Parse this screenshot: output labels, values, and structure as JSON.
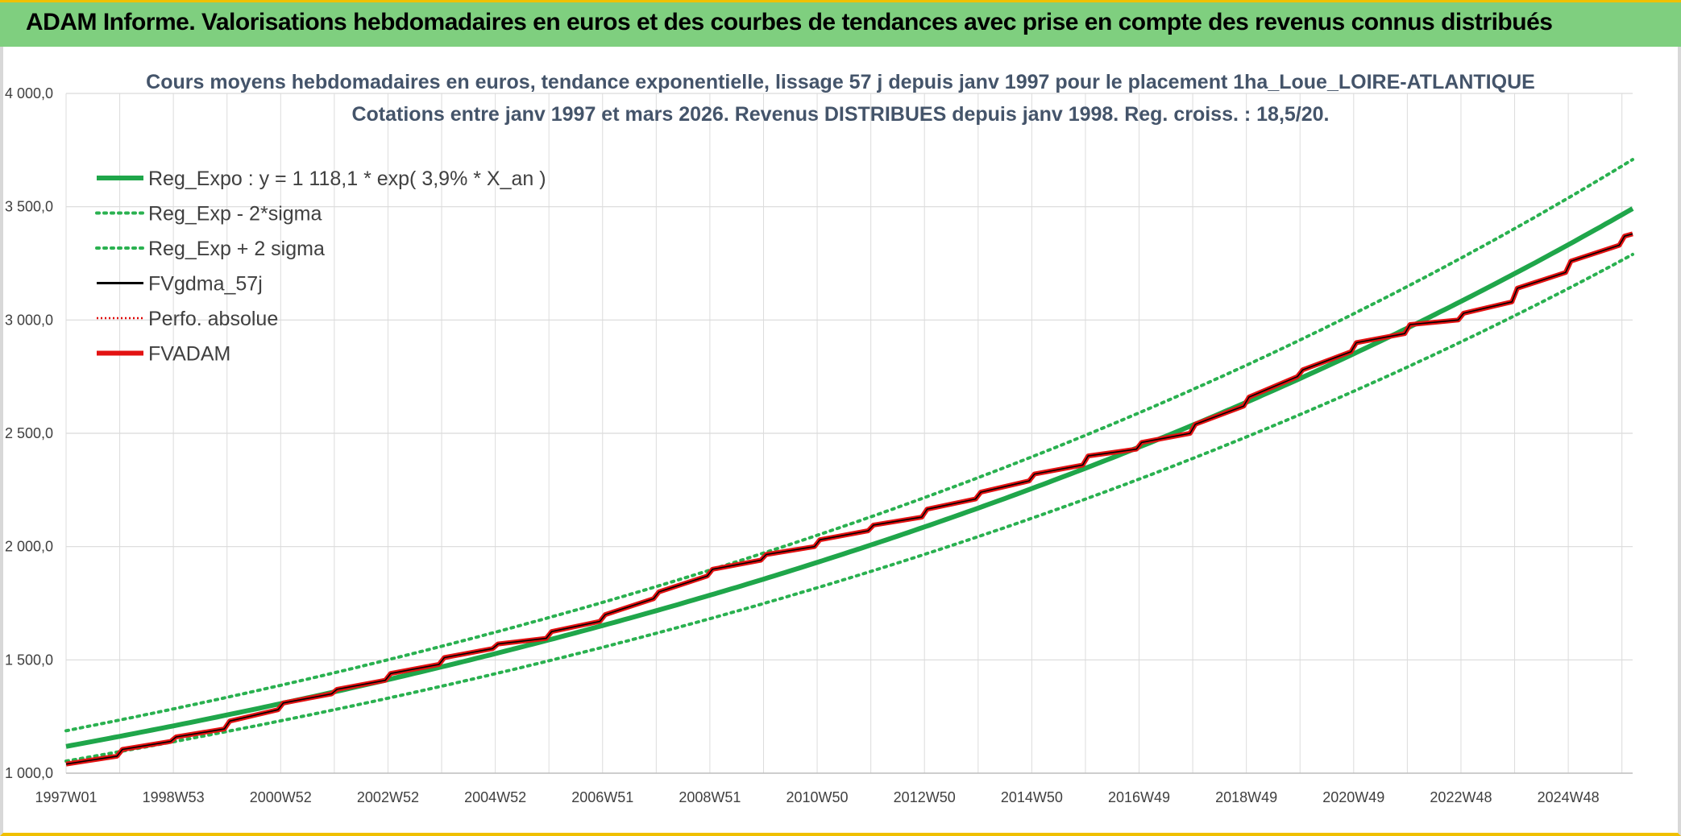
{
  "banner": {
    "title": "ADAM Informe. Valorisations hebdomadaires en euros et des courbes de tendances avec prise en compte des revenus connus distribués"
  },
  "colors": {
    "banner_bg": "#7fcf7f",
    "reg_expo": "#1fa64a",
    "reg_band": "#2ab150",
    "fvgdma": "#000000",
    "perfo": "#e00000",
    "fvadam": "#e31212",
    "title": "#44546a"
  },
  "chart_data": {
    "type": "line",
    "title": [
      "Cours moyens hebdomadaires en euros, tendance exponentielle, lissage 57 j depuis janv 1997 pour le placement 1ha_Loue_LOIRE-ATLANTIQUE",
      "Cotations entre janv 1997 et mars 2026. Revenus DISTRIBUES depuis janv 1998. Reg. croiss. : 18,5/20."
    ],
    "xlabel": "",
    "ylabel": "",
    "x_range_years": [
      1997.0,
      2026.2
    ],
    "ylim": [
      1000,
      4000
    ],
    "y_ticks": [
      "1 000,0",
      "1 500,0",
      "2 000,0",
      "2 500,0",
      "3 000,0",
      "3 500,0",
      "4 000,0"
    ],
    "x_ticks": [
      "1997W01",
      "1998W53",
      "2000W52",
      "2002W52",
      "2004W52",
      "2006W51",
      "2008W51",
      "2010W50",
      "2012W50",
      "2014W50",
      "2016W49",
      "2018W49",
      "2020W49",
      "2022W48",
      "2024W48"
    ],
    "grid": true,
    "legend_position": "top-left",
    "legend": [
      {
        "label": "Reg_Expo : y = 1 118,1  * exp( 3,9% *  X_an )",
        "style": "solid-thick",
        "color": "#1fa64a"
      },
      {
        "label": "Reg_Exp - 2*sigma",
        "style": "dotted",
        "color": "#2ab150"
      },
      {
        "label": "Reg_Exp + 2 sigma",
        "style": "dotted",
        "color": "#2ab150"
      },
      {
        "label": "FVgdma_57j",
        "style": "solid",
        "color": "#000000"
      },
      {
        "label": "Perfo. absolue",
        "style": "dotted-thin",
        "color": "#e00000"
      },
      {
        "label": "FVADAM",
        "style": "solid-thick",
        "color": "#e31212"
      }
    ],
    "regression": {
      "a": 1118.1,
      "growth_rate": 0.039
    },
    "band_factors": {
      "lower": 0.942,
      "upper": 1.062
    },
    "fvadam_points": [
      [
        1997.0,
        1040
      ],
      [
        1997.4,
        1055
      ],
      [
        1997.95,
        1075
      ],
      [
        1998.05,
        1105
      ],
      [
        1998.95,
        1140
      ],
      [
        1999.05,
        1160
      ],
      [
        1999.95,
        1195
      ],
      [
        2000.05,
        1230
      ],
      [
        2000.95,
        1280
      ],
      [
        2001.05,
        1310
      ],
      [
        2001.95,
        1350
      ],
      [
        2002.05,
        1370
      ],
      [
        2002.95,
        1410
      ],
      [
        2003.05,
        1440
      ],
      [
        2003.95,
        1480
      ],
      [
        2004.05,
        1510
      ],
      [
        2004.95,
        1550
      ],
      [
        2005.05,
        1570
      ],
      [
        2005.95,
        1595
      ],
      [
        2006.05,
        1625
      ],
      [
        2006.95,
        1670
      ],
      [
        2007.05,
        1700
      ],
      [
        2007.95,
        1770
      ],
      [
        2008.05,
        1800
      ],
      [
        2008.95,
        1870
      ],
      [
        2009.05,
        1900
      ],
      [
        2009.95,
        1940
      ],
      [
        2010.05,
        1965
      ],
      [
        2010.95,
        2000
      ],
      [
        2011.05,
        2030
      ],
      [
        2011.95,
        2070
      ],
      [
        2012.05,
        2095
      ],
      [
        2012.95,
        2130
      ],
      [
        2013.05,
        2165
      ],
      [
        2013.95,
        2210
      ],
      [
        2014.05,
        2240
      ],
      [
        2014.95,
        2290
      ],
      [
        2015.05,
        2320
      ],
      [
        2015.95,
        2360
      ],
      [
        2016.05,
        2400
      ],
      [
        2016.95,
        2430
      ],
      [
        2017.05,
        2460
      ],
      [
        2017.95,
        2500
      ],
      [
        2018.05,
        2540
      ],
      [
        2018.95,
        2620
      ],
      [
        2019.05,
        2660
      ],
      [
        2019.95,
        2750
      ],
      [
        2020.05,
        2780
      ],
      [
        2020.95,
        2860
      ],
      [
        2021.05,
        2900
      ],
      [
        2021.95,
        2940
      ],
      [
        2022.05,
        2980
      ],
      [
        2022.95,
        3000
      ],
      [
        2023.05,
        3030
      ],
      [
        2023.95,
        3080
      ],
      [
        2024.05,
        3140
      ],
      [
        2024.95,
        3210
      ],
      [
        2025.05,
        3260
      ],
      [
        2025.95,
        3330
      ],
      [
        2026.05,
        3370
      ],
      [
        2026.2,
        3380
      ]
    ]
  }
}
